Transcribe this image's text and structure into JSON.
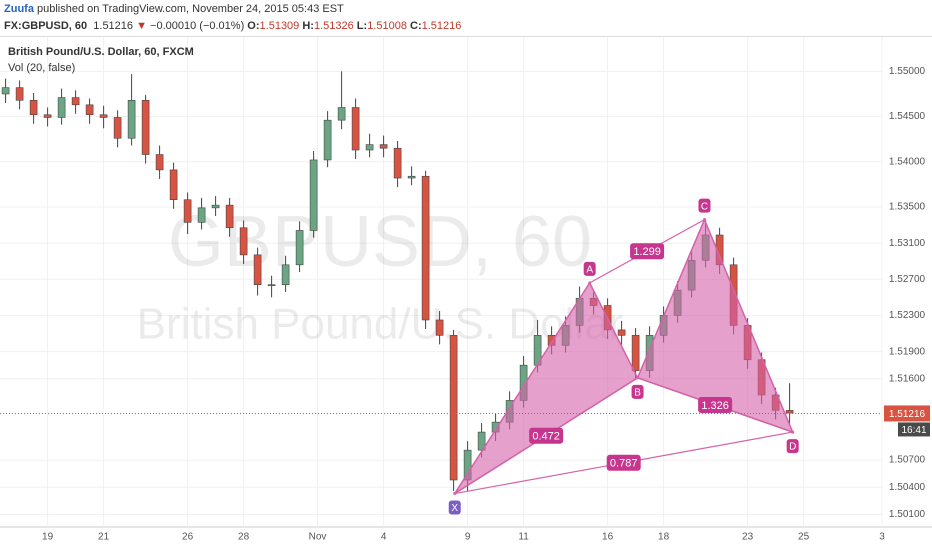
{
  "header": {
    "user": "Zuufa",
    "published": " published on TradingView.com, November 24, 2015 05:43 EST",
    "symbol": "FX:GBPUSD, 60",
    "last": 1.51216,
    "arrow": "▼",
    "change": "−0.00010 (−0.01%)",
    "open_label": "O:",
    "open": 1.51309,
    "high_label": "H:",
    "high": 1.51326,
    "low_label": "L:",
    "low": 1.51008,
    "close_label": "C:",
    "close": 1.51216
  },
  "chart_data": {
    "type": "candlestick",
    "legend": "British Pound/U.S. Dollar, 60, FXCM",
    "indicator": "Vol (20, false)",
    "watermark": "GBPUSD, 60",
    "watermark_sub": "British Pound/U.S. Dollar",
    "up_color": "#6ba583",
    "down_color": "#d75442",
    "grid": true,
    "x": [
      -1.5,
      -1,
      -0.5,
      0,
      0.5,
      1,
      1.5,
      2,
      2.5,
      3,
      3.5,
      4,
      4.5,
      5,
      5.5,
      6,
      6.5,
      7,
      7.5,
      8,
      8.5,
      9,
      9.5,
      10,
      10.5,
      11,
      11.5,
      12,
      12.5,
      13,
      13.5,
      14,
      14.5,
      15,
      15.5,
      16,
      16.5,
      17,
      17.5,
      18,
      18.5,
      19,
      19.5,
      20,
      20.5,
      21,
      21.5,
      22,
      22.5,
      23,
      23.5,
      24,
      24.5,
      25,
      25.5,
      26,
      26.5
    ],
    "open": [
      1.5475,
      1.5482,
      1.5468,
      1.5452,
      1.5449,
      1.5471,
      1.5463,
      1.5452,
      1.5449,
      1.5426,
      1.5468,
      1.5408,
      1.5391,
      1.5358,
      1.5333,
      1.5349,
      1.5352,
      1.5327,
      1.5297,
      1.5264,
      1.5264,
      1.5286,
      1.5324,
      1.5402,
      1.5446,
      1.546,
      1.5413,
      1.5419,
      1.5415,
      1.5382,
      1.5384,
      1.5225,
      1.5208,
      1.5048,
      1.5081,
      1.5101,
      1.5112,
      1.5136,
      1.5175,
      1.5208,
      1.5197,
      1.5219,
      1.5249,
      1.5241,
      1.5214,
      1.5208,
      1.5169,
      1.5208,
      1.523,
      1.5258,
      1.5291,
      1.5319,
      1.5286,
      1.5219,
      1.5181,
      1.5142,
      1.5125
    ],
    "high": [
      1.5492,
      1.549,
      1.5476,
      1.546,
      1.5481,
      1.5479,
      1.547,
      1.5462,
      1.5457,
      1.5497,
      1.5474,
      1.5418,
      1.5399,
      1.5366,
      1.536,
      1.5362,
      1.536,
      1.5335,
      1.5305,
      1.5274,
      1.5296,
      1.5334,
      1.5412,
      1.5456,
      1.55,
      1.547,
      1.5431,
      1.5429,
      1.5423,
      1.5395,
      1.539,
      1.5235,
      1.5214,
      1.5091,
      1.5111,
      1.5122,
      1.5146,
      1.5185,
      1.5225,
      1.5218,
      1.5229,
      1.5262,
      1.5257,
      1.5249,
      1.5224,
      1.5216,
      1.5218,
      1.524,
      1.5268,
      1.5301,
      1.5336,
      1.5327,
      1.5294,
      1.5227,
      1.5189,
      1.515,
      1.5155
    ],
    "low": [
      1.5465,
      1.5458,
      1.5442,
      1.5439,
      1.5441,
      1.5453,
      1.5442,
      1.5437,
      1.5416,
      1.5418,
      1.5398,
      1.5381,
      1.5348,
      1.532,
      1.5325,
      1.534,
      1.5317,
      1.5287,
      1.5252,
      1.525,
      1.5256,
      1.5278,
      1.5316,
      1.5394,
      1.5436,
      1.5403,
      1.5405,
      1.5405,
      1.5372,
      1.5374,
      1.5215,
      1.5198,
      1.5036,
      1.5036,
      1.5073,
      1.5091,
      1.5104,
      1.5128,
      1.5167,
      1.5187,
      1.5189,
      1.5211,
      1.5231,
      1.5204,
      1.5198,
      1.5159,
      1.5161,
      1.52,
      1.5222,
      1.525,
      1.5283,
      1.5276,
      1.5209,
      1.5171,
      1.5132,
      1.5115,
      1.511
    ],
    "close": [
      1.5482,
      1.5468,
      1.5452,
      1.5449,
      1.5471,
      1.5463,
      1.5452,
      1.5449,
      1.5426,
      1.5468,
      1.5408,
      1.5391,
      1.5358,
      1.5333,
      1.5349,
      1.5352,
      1.5327,
      1.5297,
      1.5264,
      1.5264,
      1.5286,
      1.5324,
      1.5402,
      1.5446,
      1.546,
      1.5413,
      1.5419,
      1.5415,
      1.5382,
      1.5384,
      1.5225,
      1.5208,
      1.5048,
      1.5081,
      1.5101,
      1.5112,
      1.5136,
      1.5175,
      1.5208,
      1.5197,
      1.5219,
      1.5249,
      1.5241,
      1.5214,
      1.5208,
      1.5169,
      1.5208,
      1.523,
      1.5258,
      1.5291,
      1.5319,
      1.5286,
      1.5219,
      1.5181,
      1.5142,
      1.5125,
      1.5122
    ],
    "xlim": [
      -1.7,
      29.8
    ],
    "ylim": [
      1.4996,
      1.5538
    ],
    "xticks": [
      {
        "value": 0,
        "label": "19"
      },
      {
        "value": 2,
        "label": "21"
      },
      {
        "value": 5,
        "label": "26"
      },
      {
        "value": 7,
        "label": "28"
      },
      {
        "value": 9.64,
        "label": "Nov"
      },
      {
        "value": 12,
        "label": "4"
      },
      {
        "value": 15,
        "label": "9"
      },
      {
        "value": 17,
        "label": "11"
      },
      {
        "value": 20,
        "label": "16"
      },
      {
        "value": 22,
        "label": "18"
      },
      {
        "value": 25,
        "label": "23"
      },
      {
        "value": 27,
        "label": "25"
      },
      {
        "value": 29.8,
        "label": "3"
      }
    ],
    "yticks": [
      {
        "value": 1.501,
        "label": "1.50100"
      },
      {
        "value": 1.504,
        "label": "1.50400"
      },
      {
        "value": 1.507,
        "label": "1.50700"
      },
      {
        "value": 1.516,
        "label": "1.51600"
      },
      {
        "value": 1.519,
        "label": "1.51900"
      },
      {
        "value": 1.523,
        "label": "1.52300"
      },
      {
        "value": 1.527,
        "label": "1.52700"
      },
      {
        "value": 1.531,
        "label": "1.53100"
      },
      {
        "value": 1.535,
        "label": "1.53500"
      },
      {
        "value": 1.54,
        "label": "1.54000"
      },
      {
        "value": 1.545,
        "label": "1.54500"
      },
      {
        "value": 1.55,
        "label": "1.55000"
      }
    ],
    "last_price": {
      "value": 1.51216,
      "label": "1.51216"
    },
    "countdown": "16:41",
    "pattern": {
      "color": "#d462a8",
      "points": [
        {
          "label": "X",
          "x": 14.54,
          "y": 1.5033
        },
        {
          "label": "A",
          "x": 19.36,
          "y": 1.5266
        },
        {
          "label": "B",
          "x": 21.07,
          "y": 1.5161
        },
        {
          "label": "C",
          "x": 23.46,
          "y": 1.5336
        },
        {
          "label": "D",
          "x": 26.61,
          "y": 1.5101
        }
      ],
      "ratios": [
        {
          "from": 1,
          "to": 3,
          "label": "1.299"
        },
        {
          "from": 0,
          "to": 2,
          "label": "0.472"
        },
        {
          "from": 2,
          "to": 4,
          "label": "1.326"
        },
        {
          "from": 0,
          "to": 4,
          "label": "0.787"
        }
      ]
    }
  }
}
